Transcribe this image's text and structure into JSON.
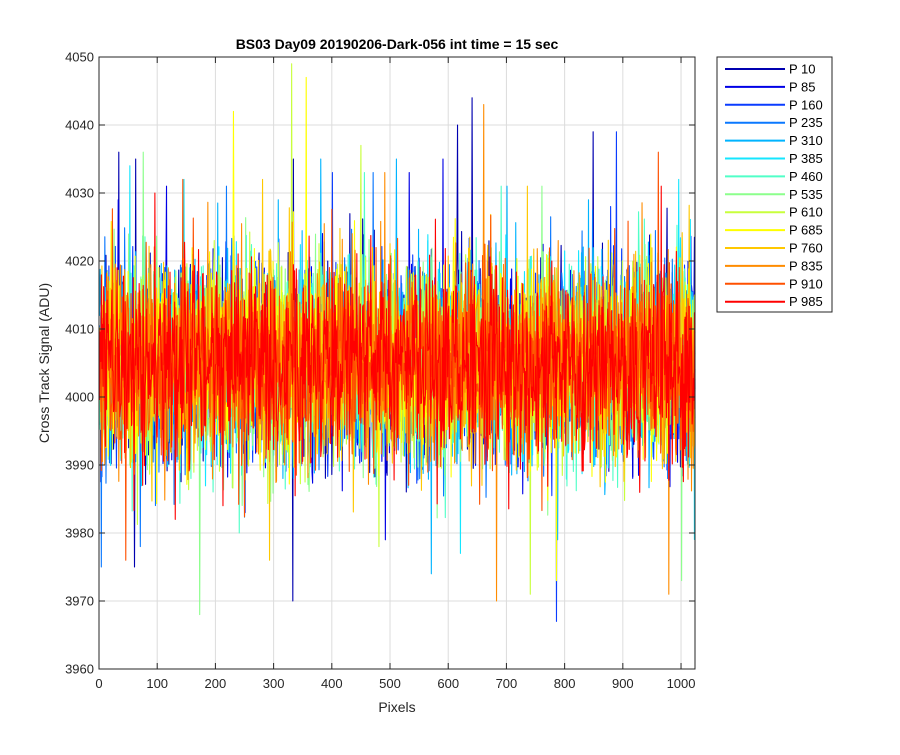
{
  "chart_data": {
    "type": "line",
    "title": "BS03 Day09 20190206-Dark-056 int time = 15 sec",
    "xlabel": "Pixels",
    "ylabel": "Cross Track Signal (ADU)",
    "xlim": [
      0,
      1024
    ],
    "ylim": [
      3960,
      4050
    ],
    "xticks": [
      0,
      100,
      200,
      300,
      400,
      500,
      600,
      700,
      800,
      900,
      1000
    ],
    "yticks": [
      3960,
      3970,
      3980,
      3990,
      4000,
      4010,
      4020,
      4030,
      4040,
      4050
    ],
    "grid": true,
    "legend_position": "outside-top-right",
    "noise_mean": 4005,
    "noise_std": 7,
    "series": [
      {
        "name": "P 10",
        "color": "#0000b0",
        "peaks": [
          [
            33,
            4036
          ],
          [
            62,
            4035
          ],
          [
            333,
            4035
          ],
          [
            615,
            4040
          ],
          [
            640,
            4044
          ],
          [
            848,
            4039
          ]
        ],
        "dips": [
          [
            60,
            3975
          ],
          [
            332,
            3970
          ]
        ]
      },
      {
        "name": "P 85",
        "color": "#0000e6",
        "peaks": [
          [
            115,
            4031
          ],
          [
            532,
            4033
          ],
          [
            590,
            4035
          ]
        ],
        "dips": [
          [
            250,
            3983
          ]
        ]
      },
      {
        "name": "P 160",
        "color": "#0a3cff",
        "peaks": [
          [
            400,
            4033
          ],
          [
            888,
            4039
          ]
        ],
        "dips": [
          [
            785,
            3967
          ]
        ]
      },
      {
        "name": "P 235",
        "color": "#0a78ff",
        "peaks": [
          [
            218,
            4031
          ],
          [
            470,
            4033
          ]
        ],
        "dips": [
          [
            3,
            3975
          ],
          [
            70,
            3978
          ]
        ]
      },
      {
        "name": "P 310",
        "color": "#00b4ff",
        "peaks": [
          [
            380,
            4035
          ],
          [
            510,
            4035
          ],
          [
            700,
            4031
          ]
        ],
        "dips": [
          [
            570,
            3974
          ]
        ]
      },
      {
        "name": "P 385",
        "color": "#14e6ff",
        "peaks": [
          [
            52,
            4034
          ],
          [
            145,
            4032
          ],
          [
            995,
            4032
          ]
        ],
        "dips": [
          [
            620,
            3977
          ]
        ]
      },
      {
        "name": "P 460",
        "color": "#50ffc8",
        "peaks": [
          [
            455,
            4033
          ],
          [
            690,
            4031
          ]
        ],
        "dips": [
          [
            240,
            3980
          ]
        ]
      },
      {
        "name": "P 535",
        "color": "#8cff8c",
        "peaks": [
          [
            75,
            4036
          ],
          [
            760,
            4031
          ]
        ],
        "dips": [
          [
            172,
            3968
          ],
          [
            1000,
            3973
          ]
        ]
      },
      {
        "name": "P 610",
        "color": "#c8ff3c",
        "peaks": [
          [
            330,
            4049
          ],
          [
            449,
            4037
          ]
        ],
        "dips": [
          [
            480,
            3978
          ],
          [
            740,
            3971
          ]
        ]
      },
      {
        "name": "P 685",
        "color": "#ffff00",
        "peaks": [
          [
            230,
            4042
          ],
          [
            355,
            4047
          ]
        ],
        "dips": [
          [
            785,
            3973
          ]
        ]
      },
      {
        "name": "P 760",
        "color": "#ffc800",
        "peaks": [
          [
            280,
            4032
          ],
          [
            735,
            4031
          ]
        ],
        "dips": [
          [
            292,
            3976
          ]
        ]
      },
      {
        "name": "P 835",
        "color": "#ff8c00",
        "peaks": [
          [
            490,
            4033
          ],
          [
            660,
            4043
          ]
        ],
        "dips": [
          [
            682,
            3970
          ],
          [
            978,
            3971
          ]
        ]
      },
      {
        "name": "P 910",
        "color": "#ff5000",
        "peaks": [
          [
            143,
            4032
          ],
          [
            960,
            4036
          ]
        ],
        "dips": [
          [
            45,
            3976
          ]
        ]
      },
      {
        "name": "P 985",
        "color": "#ff0000",
        "peaks": [
          [
            95,
            4030
          ],
          [
            965,
            4031
          ]
        ],
        "dips": [
          [
            130,
            3982
          ]
        ]
      }
    ]
  }
}
